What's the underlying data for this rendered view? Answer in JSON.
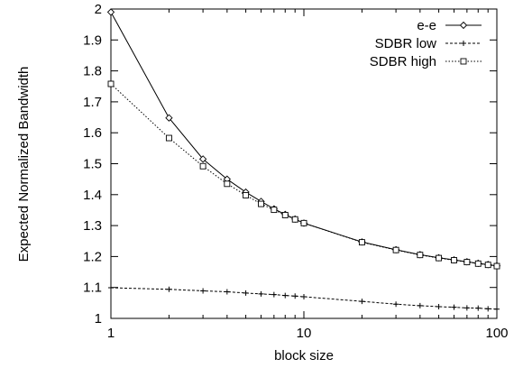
{
  "chart_data": {
    "type": "line",
    "title": "",
    "xlabel": "block size",
    "ylabel": "Expected Normalized Bandwidth",
    "xscale": "log",
    "xlim": [
      1,
      100
    ],
    "ylim": [
      1,
      2
    ],
    "xticks": [
      1,
      10,
      100
    ],
    "xtick_labels": [
      "1",
      "10",
      "100"
    ],
    "yticks": [
      1,
      1.1,
      1.2,
      1.3,
      1.4,
      1.5,
      1.6,
      1.7,
      1.8,
      1.9,
      2
    ],
    "ytick_labels": [
      "1",
      "1.1",
      "1.2",
      "1.3",
      "1.4",
      "1.5",
      "1.6",
      "1.7",
      "1.8",
      "1.9",
      "2"
    ],
    "grid": false,
    "legend_position": "top-right",
    "x": [
      1,
      2,
      3,
      4,
      5,
      6,
      7,
      8,
      9,
      10,
      20,
      30,
      40,
      50,
      60,
      70,
      80,
      90,
      100
    ],
    "series": [
      {
        "name": "e-e",
        "line_style": "solid",
        "marker": "diamond",
        "values": [
          1.99,
          1.648,
          1.515,
          1.45,
          1.408,
          1.378,
          1.354,
          1.336,
          1.321,
          1.308,
          1.247,
          1.222,
          1.206,
          1.196,
          1.189,
          1.183,
          1.178,
          1.174,
          1.17
        ]
      },
      {
        "name": "SDBR low",
        "line_style": "dashed",
        "marker": "plus",
        "values": [
          1.099,
          1.094,
          1.089,
          1.086,
          1.082,
          1.079,
          1.077,
          1.074,
          1.072,
          1.07,
          1.055,
          1.046,
          1.041,
          1.038,
          1.036,
          1.034,
          1.033,
          1.031,
          1.03
        ]
      },
      {
        "name": "SDBR high",
        "line_style": "dotted",
        "marker": "square",
        "values": [
          1.758,
          1.583,
          1.492,
          1.435,
          1.398,
          1.37,
          1.351,
          1.334,
          1.32,
          1.308,
          1.246,
          1.221,
          1.205,
          1.195,
          1.188,
          1.182,
          1.177,
          1.173,
          1.169
        ]
      }
    ]
  }
}
